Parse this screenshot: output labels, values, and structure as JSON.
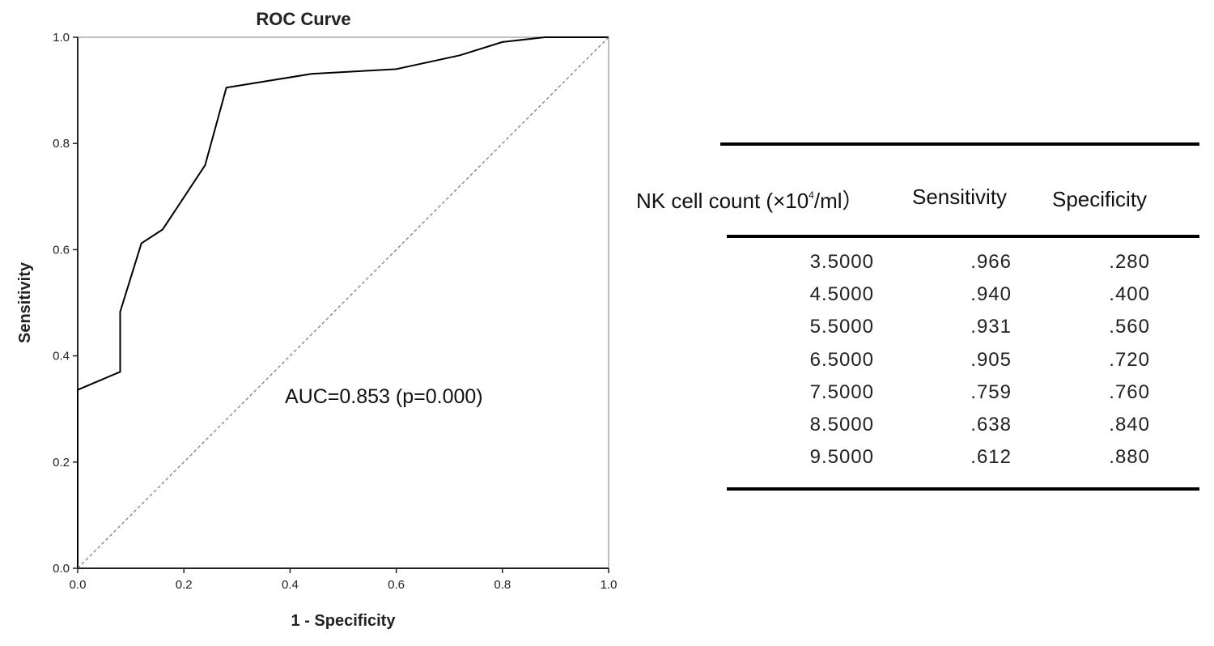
{
  "chart_data": {
    "type": "line",
    "title": "ROC Curve",
    "xlabel": "1 - Specificity",
    "ylabel": "Sensitivity",
    "xlim": [
      0,
      1
    ],
    "ylim": [
      0,
      1
    ],
    "xticks": [
      "0.0",
      "0.2",
      "0.4",
      "0.6",
      "0.8",
      "1.0"
    ],
    "yticks": [
      "0.0",
      "0.2",
      "0.4",
      "0.6",
      "0.8",
      "1.0"
    ],
    "grid": false,
    "series": [
      {
        "points": [
          [
            0,
            0
          ],
          [
            0,
            0.336
          ],
          [
            0.08,
            0.37
          ],
          [
            0.08,
            0.483
          ],
          [
            0.12,
            0.612
          ],
          [
            0.16,
            0.638
          ],
          [
            0.24,
            0.759
          ],
          [
            0.28,
            0.905
          ],
          [
            0.44,
            0.931
          ],
          [
            0.6,
            0.94
          ],
          [
            0.72,
            0.966
          ],
          [
            0.8,
            0.991
          ],
          [
            0.88,
            1.0
          ],
          [
            1.0,
            1.0
          ]
        ],
        "color": "#000000"
      },
      {
        "points": [
          [
            0,
            0
          ],
          [
            1,
            1
          ]
        ],
        "style": "dashed",
        "color": "#777777"
      }
    ],
    "annotation": "AUC=0.853 (p=0.000)"
  },
  "table": {
    "headers": {
      "count_prefix": "NK cell count (×10",
      "count_sup": "4",
      "count_suffix": "/ml）",
      "sensitivity": "Sensitivity",
      "specificity": "Specificity"
    },
    "rows": [
      [
        "3.5000",
        ".966",
        ".280"
      ],
      [
        "4.5000",
        ".940",
        ".400"
      ],
      [
        "5.5000",
        ".931",
        ".560"
      ],
      [
        "6.5000",
        ".905",
        ".720"
      ],
      [
        "7.5000",
        ".759",
        ".760"
      ],
      [
        "8.5000",
        ".638",
        ".840"
      ],
      [
        "9.5000",
        ".612",
        ".880"
      ]
    ]
  }
}
